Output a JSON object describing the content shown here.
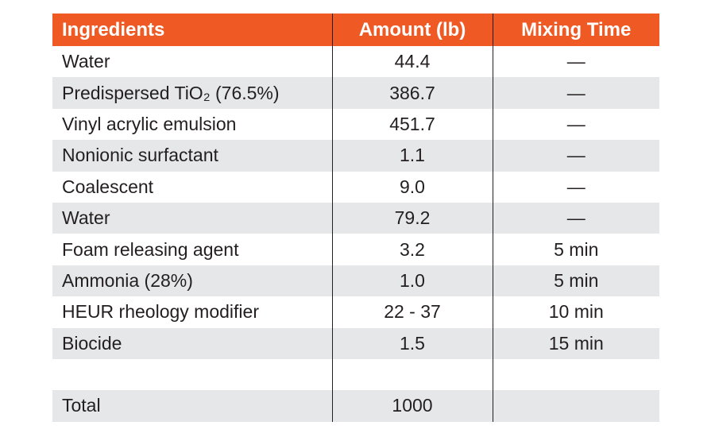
{
  "table": {
    "header": [
      "Ingredients",
      "Amount (lb)",
      "Mixing Time"
    ],
    "rows": [
      [
        "Water",
        "44.4",
        "—"
      ],
      [
        "Predispersed TiO₂ (76.5%)",
        "386.7",
        "—"
      ],
      [
        "Vinyl acrylic emulsion",
        "451.7",
        "—"
      ],
      [
        "Nonionic surfactant",
        "1.1",
        "—"
      ],
      [
        "Coalescent",
        "9.0",
        "—"
      ],
      [
        "Water",
        "79.2",
        "—"
      ],
      [
        "Foam releasing agent",
        "3.2",
        "5 min"
      ],
      [
        "Ammonia (28%)",
        "1.0",
        "5 min"
      ],
      [
        "HEUR rheology modifier",
        "22 - 37",
        "10 min"
      ],
      [
        "Biocide",
        "1.5",
        "15 min"
      ]
    ],
    "total": [
      "Total",
      "1000"
    ]
  }
}
